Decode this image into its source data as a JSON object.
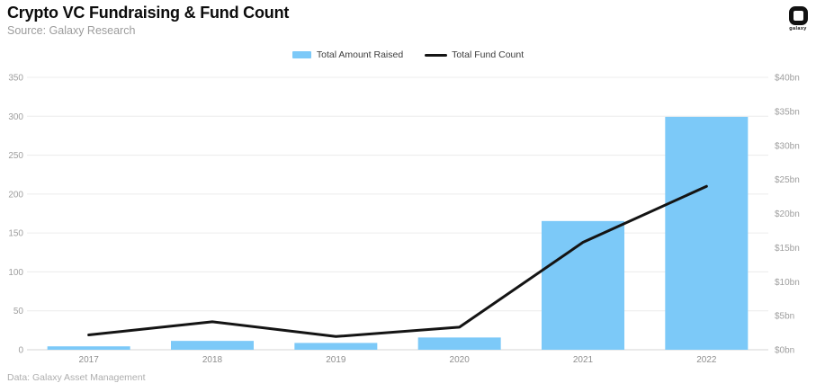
{
  "header": {
    "title": "Crypto VC Fundraising & Fund Count",
    "source": "Source: Galaxy Research",
    "logo_label": "galaxy"
  },
  "legend": {
    "items": [
      {
        "label": "Total Amount Raised",
        "swatch": "bar",
        "color": "#7cc9f8"
      },
      {
        "label": "Total Fund Count",
        "swatch": "line",
        "color": "#141414"
      }
    ]
  },
  "footer": {
    "credit": "Data: Galaxy Asset Management"
  },
  "colors": {
    "bar": "#7cc9f8",
    "line": "#141414",
    "grid": "#ececec",
    "baseline": "#d4d4d4",
    "axis_text": "#9e9e9e",
    "x_label_text": "#8f8f8f"
  },
  "chart_data": {
    "type": "bar",
    "subtype": "bar+line combo, dual y-axes",
    "title": "Crypto VC Fundraising & Fund Count",
    "categories": [
      "2017",
      "2018",
      "2019",
      "2020",
      "2021",
      "2022"
    ],
    "series": [
      {
        "name": "Total Amount Raised",
        "type": "bar",
        "axis": "right",
        "unit": "$bn",
        "color": "#7cc9f8",
        "values": [
          0.5,
          1.3,
          1.0,
          1.8,
          18.9,
          34.2
        ]
      },
      {
        "name": "Total Fund Count",
        "type": "line",
        "axis": "left",
        "unit": "funds",
        "color": "#141414",
        "values": [
          19,
          36,
          17,
          29,
          138,
          210
        ]
      }
    ],
    "left_axis": {
      "min": 0,
      "max": 350,
      "ticks": [
        350,
        300,
        250,
        200,
        150,
        100,
        50,
        0
      ]
    },
    "right_axis": {
      "min": 0,
      "max": 40,
      "tick_labels": [
        "$40bn",
        "$35bn",
        "$30bn",
        "$25bn",
        "$20bn",
        "$15bn",
        "$10bn",
        "$5bn",
        "$0bn"
      ]
    },
    "grid": "horizontal only, aligned to left axis ticks",
    "legend_position": "top-center"
  }
}
